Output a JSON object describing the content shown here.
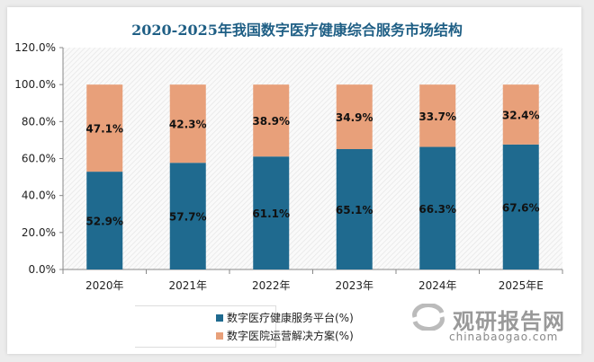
{
  "chart_data": {
    "type": "bar",
    "stacked": true,
    "title": "2020-2025年我国数字医疗健康综合服务市场结构",
    "categories": [
      "2020年",
      "2021年",
      "2022年",
      "2023年",
      "2024年",
      "2025年E"
    ],
    "series": [
      {
        "name": "数字医疗健康服务平台(%)",
        "values": [
          52.9,
          57.7,
          61.1,
          65.1,
          66.3,
          67.6
        ],
        "color": "#1f6a8f"
      },
      {
        "name": "数字医院运营解决方案(%)",
        "values": [
          47.1,
          42.3,
          38.9,
          34.9,
          33.7,
          32.4
        ],
        "color": "#e8a07a"
      }
    ],
    "ylim": [
      0,
      120
    ],
    "yticks": [
      "0.0%",
      "20.0%",
      "40.0%",
      "60.0%",
      "80.0%",
      "100.0%",
      "120.0%"
    ],
    "legend": "bottom",
    "grid": false
  },
  "watermark": {
    "brand": "观研报告网",
    "url": "chinabaogao.com"
  }
}
